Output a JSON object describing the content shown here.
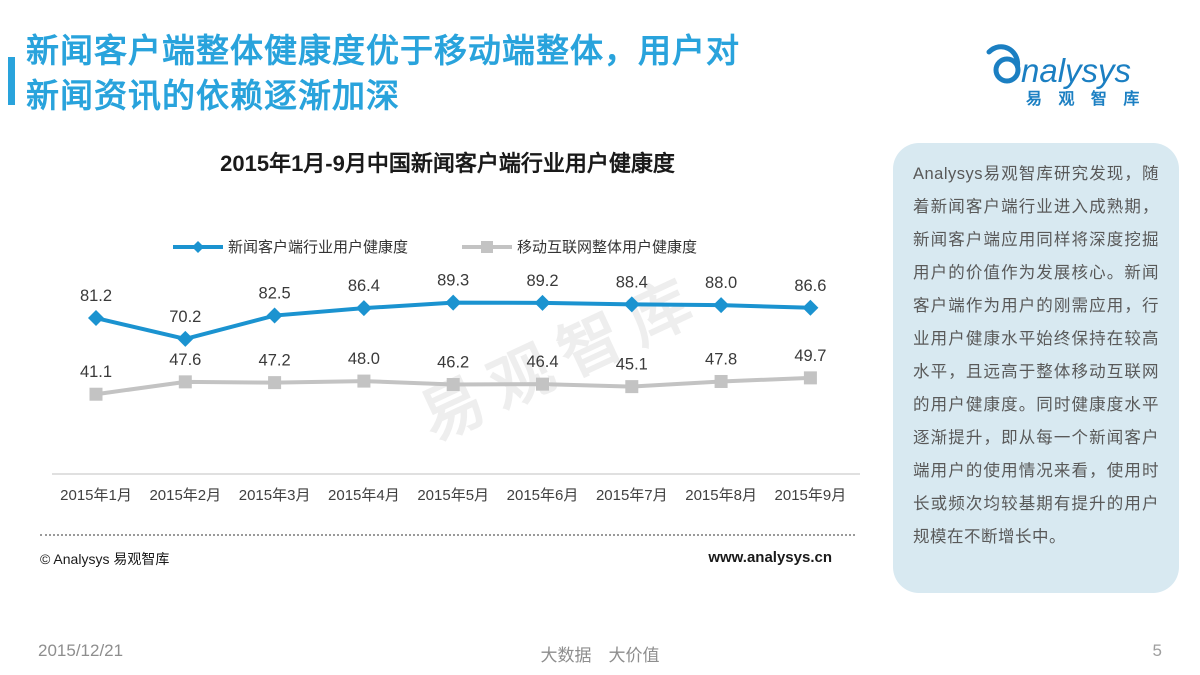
{
  "colors": {
    "title_blue": "#29a3dc",
    "logo_blue": "#1b7fc2",
    "news_line_blue": "#1b93d0",
    "mobile_line_gray": "#c3c3c3",
    "sidebar_bg": "#d8e9f1",
    "sidebar_text": "#595959"
  },
  "header": {
    "title_line1": "新闻客户端整体健康度优于移动端整体，用户对",
    "title_line2": "新闻资讯的依赖逐渐加深",
    "logo": {
      "brand": "nalysys",
      "brand_cn": "易 观 智 库"
    }
  },
  "chart": {
    "title": "2015年1月-9月中国新闻客户端行业用户健康度",
    "watermark": "易观智库",
    "footer_left": "© Analysys 易观智库",
    "footer_right": "www.analysys.cn"
  },
  "chart_data": {
    "type": "line",
    "title": "2015年1月-9月中国新闻客户端行业用户健康度",
    "categories": [
      "2015年1月",
      "2015年2月",
      "2015年3月",
      "2015年4月",
      "2015年5月",
      "2015年6月",
      "2015年7月",
      "2015年8月",
      "2015年9月"
    ],
    "series": [
      {
        "name": "新闻客户端行业用户健康度",
        "marker": "diamond",
        "color": "#1b93d0",
        "values": [
          81.2,
          70.2,
          82.5,
          86.4,
          89.3,
          89.2,
          88.4,
          88.0,
          86.6
        ]
      },
      {
        "name": "移动互联网整体用户健康度",
        "marker": "square",
        "color": "#c3c3c3",
        "values": [
          41.1,
          47.6,
          47.2,
          48.0,
          46.2,
          46.4,
          45.1,
          47.8,
          49.7
        ]
      }
    ],
    "ylim": [
      0,
      100
    ],
    "grid": false,
    "data_labels": true,
    "legend_position": "top"
  },
  "sidebar": {
    "text": "Analysys易观智库研究发现，随着新闻客户端行业进入成熟期，新闻客户端应用同样将深度挖掘用户的价值作为发展核心。新闻客户端作为用户的刚需应用，行业用户健康水平始终保持在较高水平，且远高于整体移动互联网的用户健康度。同时健康度水平逐渐提升，即从每一个新闻客户端用户的使用情况来看，使用时长或频次均较基期有提升的用户规模在不断增长中。"
  },
  "footer": {
    "date": "2015/12/21",
    "slogan": "大数据　大价值",
    "page_number": "5"
  }
}
